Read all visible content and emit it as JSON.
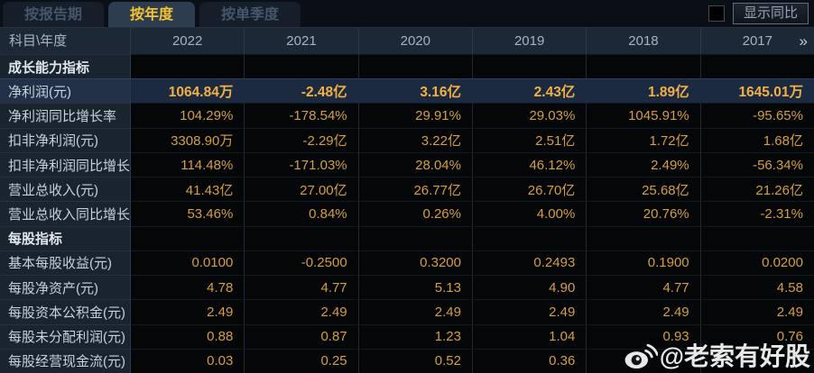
{
  "tabs": [
    {
      "label": "按报告期",
      "active": false
    },
    {
      "label": "按年度",
      "active": true
    },
    {
      "label": "按单季度",
      "active": false
    }
  ],
  "controls": {
    "show_yoy_label": "显示同比",
    "checkbox_checked": false
  },
  "table": {
    "corner_header": "科目\\年度",
    "year_columns": [
      "2022",
      "2021",
      "2020",
      "2019",
      "2018",
      "2017"
    ],
    "more_icon": "»",
    "rows": [
      {
        "type": "section",
        "label": "成长能力指标"
      },
      {
        "type": "data",
        "label": "净利润(元)",
        "highlight": true,
        "values": [
          "1064.84万",
          "-2.48亿",
          "3.16亿",
          "2.43亿",
          "1.89亿",
          "1645.01万"
        ]
      },
      {
        "type": "data",
        "label": "净利润同比增长率",
        "values": [
          "104.29%",
          "-178.54%",
          "29.91%",
          "29.03%",
          "1045.91%",
          "-95.65%"
        ]
      },
      {
        "type": "data",
        "label": "扣非净利润(元)",
        "values": [
          "3308.90万",
          "-2.29亿",
          "3.22亿",
          "2.51亿",
          "1.72亿",
          "1.68亿"
        ]
      },
      {
        "type": "data",
        "label": "扣非净利润同比增长率",
        "values": [
          "114.48%",
          "-171.03%",
          "28.04%",
          "46.12%",
          "2.49%",
          "-56.34%"
        ]
      },
      {
        "type": "data",
        "label": "营业总收入(元)",
        "values": [
          "41.43亿",
          "27.00亿",
          "26.77亿",
          "26.70亿",
          "25.68亿",
          "21.26亿"
        ]
      },
      {
        "type": "data",
        "label": "营业总收入同比增长率",
        "values": [
          "53.46%",
          "0.84%",
          "0.26%",
          "4.00%",
          "20.76%",
          "-2.31%"
        ]
      },
      {
        "type": "section",
        "label": "每股指标"
      },
      {
        "type": "data",
        "label": "基本每股收益(元)",
        "values": [
          "0.0100",
          "-0.2500",
          "0.3200",
          "0.2493",
          "0.1900",
          "0.0200"
        ]
      },
      {
        "type": "data",
        "label": "每股净资产(元)",
        "values": [
          "4.78",
          "4.77",
          "5.13",
          "4.90",
          "4.77",
          "4.58"
        ]
      },
      {
        "type": "data",
        "label": "每股资本公积金(元)",
        "values": [
          "2.49",
          "2.49",
          "2.49",
          "2.49",
          "2.49",
          "2.49"
        ]
      },
      {
        "type": "data",
        "label": "每股未分配利润(元)",
        "values": [
          "0.88",
          "0.87",
          "1.23",
          "1.04",
          "0.93",
          "0.76"
        ]
      },
      {
        "type": "data",
        "label": "每股经营现金流(元)",
        "values": [
          "0.03",
          "0.25",
          "0.52",
          "0.36",
          "",
          ""
        ]
      }
    ]
  },
  "watermark": {
    "icon": "weibo-icon",
    "handle": "@老索有好股"
  },
  "colors": {
    "accent_gold": "#d69f40",
    "highlight_gold": "#f2b042",
    "active_tab_text": "#f3c331",
    "highlight_row_bg": "#1b2a41",
    "header_bg": "#1c2836",
    "label_col_bg": "#19242f",
    "data_cell_bg": "#040608"
  }
}
